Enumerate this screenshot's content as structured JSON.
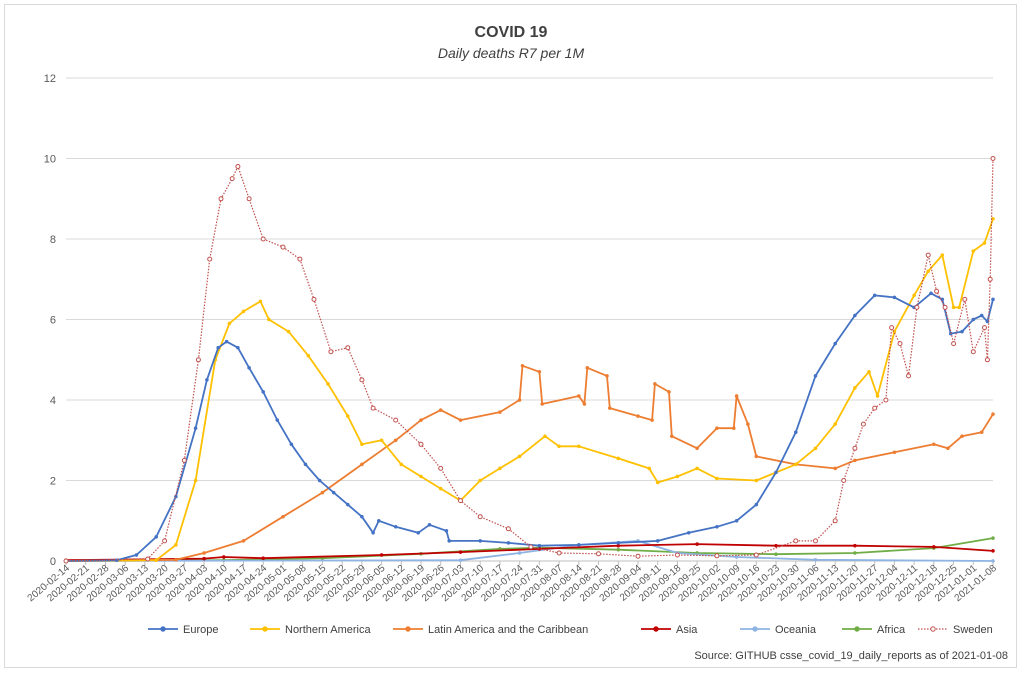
{
  "chart_data": {
    "type": "line",
    "title": "COVID 19",
    "subtitle": "Daily deaths R7 per 1M",
    "source": "Source: GITHUB csse_covid_19_daily_reports  as of 2021-01-08",
    "ylim": [
      0,
      12
    ],
    "yticks": [
      0,
      2,
      4,
      6,
      8,
      10,
      12
    ],
    "x_start": "2020-02-14",
    "x_end": "2021-01-08",
    "xtick_labels": [
      "2020-02-14",
      "2020-02-21",
      "2020-02-28",
      "2020-03-06",
      "2020-03-13",
      "2020-03-20",
      "2020-03-27",
      "2020-04-03",
      "2020-04-10",
      "2020-04-17",
      "2020-04-24",
      "2020-05-01",
      "2020-05-08",
      "2020-05-15",
      "2020-05-22",
      "2020-05-29",
      "2020-06-05",
      "2020-06-12",
      "2020-06-19",
      "2020-06-26",
      "2020-07-03",
      "2020-07-10",
      "2020-07-17",
      "2020-07-24",
      "2020-07-31",
      "2020-08-07",
      "2020-08-14",
      "2020-08-21",
      "2020-08-28",
      "2020-09-04",
      "2020-09-11",
      "2020-09-18",
      "2020-09-25",
      "2020-10-02",
      "2020-10-09",
      "2020-10-16",
      "2020-10-23",
      "2020-10-30",
      "2020-11-06",
      "2020-11-13",
      "2020-11-20",
      "2020-11-27",
      "2020-12-04",
      "2020-12-11",
      "2020-12-18",
      "2020-12-25",
      "2021-01-01",
      "2021-01-08"
    ],
    "grid": true,
    "legend_position": "bottom",
    "series": [
      {
        "name": "Europe",
        "color": "#4472c4",
        "dotted": false,
        "points": [
          [
            "2020-02-14",
            0
          ],
          [
            "2020-03-03",
            0.02
          ],
          [
            "2020-03-10",
            0.15
          ],
          [
            "2020-03-17",
            0.6
          ],
          [
            "2020-03-24",
            1.6
          ],
          [
            "2020-03-31",
            3.3
          ],
          [
            "2020-04-04",
            4.5
          ],
          [
            "2020-04-08",
            5.3
          ],
          [
            "2020-04-11",
            5.45
          ],
          [
            "2020-04-15",
            5.3
          ],
          [
            "2020-04-19",
            4.8
          ],
          [
            "2020-04-24",
            4.2
          ],
          [
            "2020-04-29",
            3.5
          ],
          [
            "2020-05-04",
            2.9
          ],
          [
            "2020-05-09",
            2.4
          ],
          [
            "2020-05-14",
            2.0
          ],
          [
            "2020-05-19",
            1.7
          ],
          [
            "2020-05-24",
            1.4
          ],
          [
            "2020-05-29",
            1.1
          ],
          [
            "2020-06-02",
            0.7
          ],
          [
            "2020-06-04",
            1.0
          ],
          [
            "2020-06-10",
            0.85
          ],
          [
            "2020-06-18",
            0.7
          ],
          [
            "2020-06-22",
            0.9
          ],
          [
            "2020-06-28",
            0.75
          ],
          [
            "2020-06-29",
            0.5
          ],
          [
            "2020-07-10",
            0.5
          ],
          [
            "2020-07-20",
            0.45
          ],
          [
            "2020-07-31",
            0.38
          ],
          [
            "2020-08-14",
            0.4
          ],
          [
            "2020-08-28",
            0.45
          ],
          [
            "2020-09-11",
            0.5
          ],
          [
            "2020-09-22",
            0.7
          ],
          [
            "2020-10-02",
            0.85
          ],
          [
            "2020-10-09",
            1.0
          ],
          [
            "2020-10-16",
            1.4
          ],
          [
            "2020-10-23",
            2.2
          ],
          [
            "2020-10-30",
            3.2
          ],
          [
            "2020-11-06",
            4.6
          ],
          [
            "2020-11-13",
            5.4
          ],
          [
            "2020-11-20",
            6.1
          ],
          [
            "2020-11-27",
            6.6
          ],
          [
            "2020-12-04",
            6.55
          ],
          [
            "2020-12-11",
            6.3
          ],
          [
            "2020-12-17",
            6.65
          ],
          [
            "2020-12-21",
            6.5
          ],
          [
            "2020-12-24",
            5.65
          ],
          [
            "2020-12-28",
            5.7
          ],
          [
            "2021-01-01",
            6.0
          ],
          [
            "2021-01-04",
            6.1
          ],
          [
            "2021-01-06",
            5.95
          ],
          [
            "2021-01-08",
            6.5
          ]
        ]
      },
      {
        "name": "Northern America",
        "color": "#ffc000",
        "dotted": false,
        "points": [
          [
            "2020-02-14",
            0
          ],
          [
            "2020-03-17",
            0.02
          ],
          [
            "2020-03-24",
            0.4
          ],
          [
            "2020-03-31",
            2.0
          ],
          [
            "2020-04-07",
            5.0
          ],
          [
            "2020-04-12",
            5.9
          ],
          [
            "2020-04-17",
            6.2
          ],
          [
            "2020-04-23",
            6.45
          ],
          [
            "2020-04-26",
            6.0
          ],
          [
            "2020-05-03",
            5.7
          ],
          [
            "2020-05-10",
            5.1
          ],
          [
            "2020-05-17",
            4.4
          ],
          [
            "2020-05-24",
            3.6
          ],
          [
            "2020-05-29",
            2.9
          ],
          [
            "2020-06-05",
            3.0
          ],
          [
            "2020-06-12",
            2.4
          ],
          [
            "2020-06-19",
            2.1
          ],
          [
            "2020-06-26",
            1.8
          ],
          [
            "2020-07-03",
            1.5
          ],
          [
            "2020-07-10",
            2.0
          ],
          [
            "2020-07-17",
            2.3
          ],
          [
            "2020-07-24",
            2.6
          ],
          [
            "2020-08-02",
            3.1
          ],
          [
            "2020-08-07",
            2.85
          ],
          [
            "2020-08-14",
            2.85
          ],
          [
            "2020-08-28",
            2.55
          ],
          [
            "2020-09-08",
            2.3
          ],
          [
            "2020-09-11",
            1.95
          ],
          [
            "2020-09-18",
            2.1
          ],
          [
            "2020-09-25",
            2.3
          ],
          [
            "2020-10-02",
            2.05
          ],
          [
            "2020-10-16",
            2.0
          ],
          [
            "2020-10-23",
            2.2
          ],
          [
            "2020-10-30",
            2.4
          ],
          [
            "2020-11-06",
            2.8
          ],
          [
            "2020-11-13",
            3.4
          ],
          [
            "2020-11-20",
            4.3
          ],
          [
            "2020-11-25",
            4.7
          ],
          [
            "2020-11-28",
            4.1
          ],
          [
            "2020-12-04",
            5.7
          ],
          [
            "2020-12-11",
            6.6
          ],
          [
            "2020-12-16",
            7.2
          ],
          [
            "2020-12-21",
            7.6
          ],
          [
            "2020-12-25",
            6.3
          ],
          [
            "2020-12-27",
            6.3
          ],
          [
            "2021-01-01",
            7.7
          ],
          [
            "2021-01-05",
            7.9
          ],
          [
            "2021-01-08",
            8.5
          ]
        ]
      },
      {
        "name": "Latin America and the Caribbean",
        "color": "#ed7d31",
        "dotted": false,
        "points": [
          [
            "2020-02-14",
            0
          ],
          [
            "2020-03-24",
            0.03
          ],
          [
            "2020-04-03",
            0.2
          ],
          [
            "2020-04-17",
            0.5
          ],
          [
            "2020-05-01",
            1.1
          ],
          [
            "2020-05-15",
            1.7
          ],
          [
            "2020-05-29",
            2.4
          ],
          [
            "2020-06-10",
            3.0
          ],
          [
            "2020-06-19",
            3.5
          ],
          [
            "2020-06-26",
            3.75
          ],
          [
            "2020-07-03",
            3.5
          ],
          [
            "2020-07-17",
            3.7
          ],
          [
            "2020-07-24",
            4.0
          ],
          [
            "2020-07-25",
            4.85
          ],
          [
            "2020-07-31",
            4.7
          ],
          [
            "2020-08-01",
            3.9
          ],
          [
            "2020-08-14",
            4.1
          ],
          [
            "2020-08-16",
            3.9
          ],
          [
            "2020-08-17",
            4.8
          ],
          [
            "2020-08-24",
            4.6
          ],
          [
            "2020-08-25",
            3.8
          ],
          [
            "2020-09-04",
            3.6
          ],
          [
            "2020-09-09",
            3.5
          ],
          [
            "2020-09-10",
            4.4
          ],
          [
            "2020-09-15",
            4.2
          ],
          [
            "2020-09-16",
            3.1
          ],
          [
            "2020-09-25",
            2.8
          ],
          [
            "2020-10-02",
            3.3
          ],
          [
            "2020-10-08",
            3.3
          ],
          [
            "2020-10-09",
            4.1
          ],
          [
            "2020-10-13",
            3.4
          ],
          [
            "2020-10-16",
            2.6
          ],
          [
            "2020-10-30",
            2.4
          ],
          [
            "2020-11-13",
            2.3
          ],
          [
            "2020-11-20",
            2.5
          ],
          [
            "2020-12-04",
            2.7
          ],
          [
            "2020-12-18",
            2.9
          ],
          [
            "2020-12-23",
            2.8
          ],
          [
            "2020-12-28",
            3.1
          ],
          [
            "2021-01-04",
            3.2
          ],
          [
            "2021-01-08",
            3.65
          ]
        ]
      },
      {
        "name": "Asia",
        "color": "#c00000",
        "dotted": false,
        "points": [
          [
            "2020-02-14",
            0.02
          ],
          [
            "2020-04-03",
            0.06
          ],
          [
            "2020-04-10",
            0.1
          ],
          [
            "2020-04-24",
            0.07
          ],
          [
            "2020-06-05",
            0.15
          ],
          [
            "2020-07-03",
            0.22
          ],
          [
            "2020-07-31",
            0.3
          ],
          [
            "2020-08-28",
            0.38
          ],
          [
            "2020-09-25",
            0.42
          ],
          [
            "2020-10-23",
            0.38
          ],
          [
            "2020-11-20",
            0.38
          ],
          [
            "2020-12-18",
            0.35
          ],
          [
            "2021-01-08",
            0.25
          ]
        ]
      },
      {
        "name": "Oceania",
        "color": "#8eb4e3",
        "dotted": false,
        "points": [
          [
            "2020-02-14",
            0
          ],
          [
            "2020-07-03",
            0.02
          ],
          [
            "2020-07-24",
            0.2
          ],
          [
            "2020-08-14",
            0.4
          ],
          [
            "2020-09-04",
            0.5
          ],
          [
            "2020-09-18",
            0.2
          ],
          [
            "2020-10-09",
            0.1
          ],
          [
            "2020-11-06",
            0.03
          ],
          [
            "2021-01-08",
            0
          ]
        ]
      },
      {
        "name": "Africa",
        "color": "#70ad47",
        "dotted": false,
        "points": [
          [
            "2020-02-14",
            0
          ],
          [
            "2020-04-10",
            0.02
          ],
          [
            "2020-05-15",
            0.07
          ],
          [
            "2020-06-19",
            0.18
          ],
          [
            "2020-07-17",
            0.3
          ],
          [
            "2020-07-31",
            0.33
          ],
          [
            "2020-08-28",
            0.28
          ],
          [
            "2020-09-25",
            0.2
          ],
          [
            "2020-10-23",
            0.17
          ],
          [
            "2020-11-20",
            0.2
          ],
          [
            "2020-12-18",
            0.32
          ],
          [
            "2021-01-08",
            0.57
          ]
        ]
      },
      {
        "name": "Sweden",
        "color": "#c0504d",
        "dotted": true,
        "points": [
          [
            "2020-02-14",
            0
          ],
          [
            "2020-03-14",
            0.05
          ],
          [
            "2020-03-20",
            0.5
          ],
          [
            "2020-03-27",
            2.5
          ],
          [
            "2020-04-01",
            5.0
          ],
          [
            "2020-04-05",
            7.5
          ],
          [
            "2020-04-09",
            9.0
          ],
          [
            "2020-04-13",
            9.5
          ],
          [
            "2020-04-15",
            9.8
          ],
          [
            "2020-04-19",
            9.0
          ],
          [
            "2020-04-24",
            8.0
          ],
          [
            "2020-05-01",
            7.8
          ],
          [
            "2020-05-07",
            7.5
          ],
          [
            "2020-05-12",
            6.5
          ],
          [
            "2020-05-18",
            5.2
          ],
          [
            "2020-05-24",
            5.3
          ],
          [
            "2020-05-29",
            4.5
          ],
          [
            "2020-06-02",
            3.8
          ],
          [
            "2020-06-10",
            3.5
          ],
          [
            "2020-06-19",
            2.9
          ],
          [
            "2020-06-26",
            2.3
          ],
          [
            "2020-07-03",
            1.5
          ],
          [
            "2020-07-10",
            1.1
          ],
          [
            "2020-07-20",
            0.8
          ],
          [
            "2020-07-28",
            0.35
          ],
          [
            "2020-08-07",
            0.2
          ],
          [
            "2020-08-21",
            0.18
          ],
          [
            "2020-09-04",
            0.12
          ],
          [
            "2020-09-18",
            0.15
          ],
          [
            "2020-10-02",
            0.13
          ],
          [
            "2020-10-16",
            0.15
          ],
          [
            "2020-10-30",
            0.5
          ],
          [
            "2020-11-06",
            0.5
          ],
          [
            "2020-11-13",
            1.0
          ],
          [
            "2020-11-16",
            2.0
          ],
          [
            "2020-11-20",
            2.8
          ],
          [
            "2020-11-23",
            3.4
          ],
          [
            "2020-11-27",
            3.8
          ],
          [
            "2020-12-01",
            4.0
          ],
          [
            "2020-12-03",
            5.8
          ],
          [
            "2020-12-06",
            5.4
          ],
          [
            "2020-12-09",
            4.6
          ],
          [
            "2020-12-12",
            6.3
          ],
          [
            "2020-12-16",
            7.6
          ],
          [
            "2020-12-19",
            6.7
          ],
          [
            "2020-12-22",
            6.3
          ],
          [
            "2020-12-25",
            5.4
          ],
          [
            "2020-12-29",
            6.5
          ],
          [
            "2021-01-01",
            5.2
          ],
          [
            "2021-01-05",
            5.8
          ],
          [
            "2021-01-06",
            5.0
          ],
          [
            "2021-01-07",
            7.0
          ],
          [
            "2021-01-08",
            10.0
          ]
        ]
      }
    ]
  }
}
